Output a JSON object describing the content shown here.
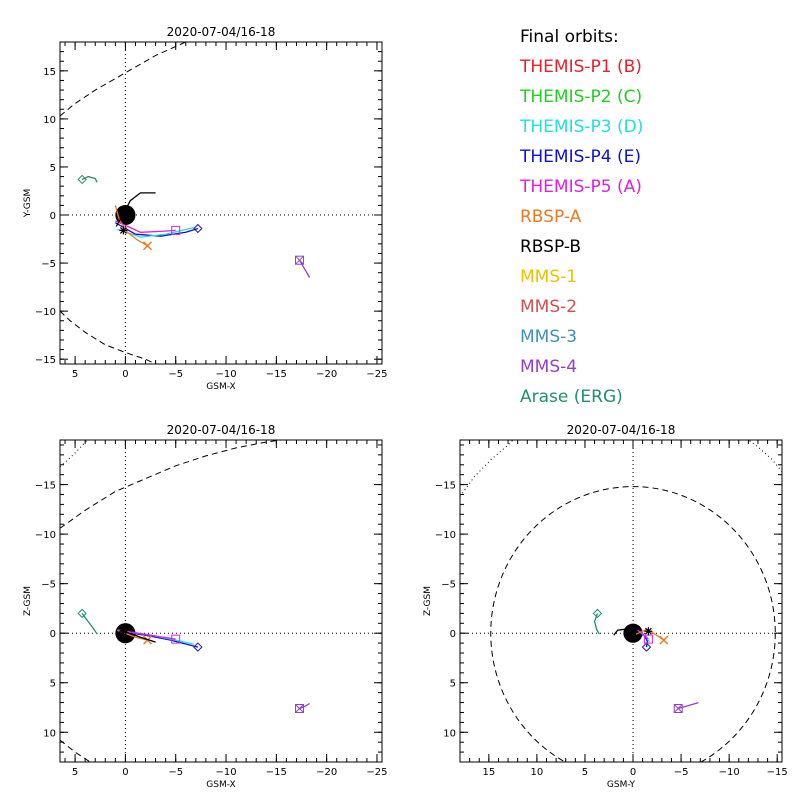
{
  "legend": {
    "title": "Final orbits:",
    "items": [
      {
        "label": "THEMIS-P1 (B)",
        "color": "#e8202a"
      },
      {
        "label": "THEMIS-P2 (C)",
        "color": "#20d020"
      },
      {
        "label": "THEMIS-P3 (D)",
        "color": "#20e0e0"
      },
      {
        "label": "THEMIS-P4 (E)",
        "color": "#1010d0"
      },
      {
        "label": "THEMIS-P5 (A)",
        "color": "#e020e0"
      },
      {
        "label": "RBSP-A",
        "color": "#f07820"
      },
      {
        "label": "RBSP-B",
        "color": "#000000"
      },
      {
        "label": "MMS-1",
        "color": "#f0c000"
      },
      {
        "label": "MMS-2",
        "color": "#d05050"
      },
      {
        "label": "MMS-3",
        "color": "#4090c0"
      },
      {
        "label": "MMS-4",
        "color": "#9040d0"
      },
      {
        "label": "Arase (ERG)",
        "color": "#20906a"
      }
    ]
  },
  "chart_data": [
    {
      "type": "line",
      "title": "2020-07-04/16-18",
      "xlabel": "GSM-X",
      "ylabel": "Y-GSM",
      "xlim": [
        6.5,
        -25.5
      ],
      "ylim": [
        18,
        -15.5
      ],
      "xticks": [
        5,
        0,
        -5,
        -10,
        -15,
        -20,
        -25
      ],
      "xticklabels": [
        "5",
        "0",
        "−5",
        "−10",
        "−15",
        "−20",
        "−25"
      ],
      "yticks": [
        -15,
        -10,
        -5,
        0,
        5,
        10,
        15
      ],
      "yticklabels": [
        "−15",
        "−10",
        "−5",
        "0",
        "5",
        "10",
        "15"
      ],
      "grid": "zero lines dotted",
      "earth": {
        "x": 0,
        "y": 0,
        "r": 1
      },
      "boundaries": [
        {
          "style": "dashed",
          "points": [
            [
              6.5,
              -10.0
            ],
            [
              5.5,
              -11.0
            ],
            [
              4.0,
              -12.2
            ],
            [
              2.0,
              -13.5
            ],
            [
              0,
              -14.3
            ],
            [
              -2.0,
              -15.0
            ],
            [
              -3.0,
              -15.5
            ]
          ]
        },
        {
          "style": "dashed",
          "points": [
            [
              6.5,
              10.3
            ],
            [
              5.0,
              11.6
            ],
            [
              3.0,
              13.0
            ],
            [
              0,
              14.8
            ],
            [
              -3.0,
              16.6
            ],
            [
              -6.0,
              18.0
            ]
          ]
        }
      ],
      "series": [
        {
          "color": "#1010d0",
          "points": [
            [
              1.0,
              -0.8
            ],
            [
              -1.0,
              -2.0
            ],
            [
              -3.5,
              -2.2
            ],
            [
              -6.0,
              -1.8
            ],
            [
              -7.2,
              -1.4
            ]
          ],
          "end": {
            "x": -7.2,
            "y": -1.4,
            "marker": "diamond"
          }
        },
        {
          "color": "#20e0e0",
          "points": [
            [
              0.8,
              -1.5
            ],
            [
              -1.5,
              -2.3
            ],
            [
              -4.0,
              -2.0
            ],
            [
              -6.8,
              -1.3
            ]
          ]
        },
        {
          "color": "#e020e0",
          "points": [
            [
              1.0,
              -0.6
            ],
            [
              -1.5,
              -1.8
            ],
            [
              -3.5,
              -1.7
            ],
            [
              -5.0,
              -1.6
            ]
          ],
          "end": {
            "x": -5.0,
            "y": -1.6,
            "marker": "square"
          }
        },
        {
          "color": "#f07820",
          "points": [
            [
              1.0,
              1.0
            ],
            [
              0.6,
              -0.5
            ],
            [
              -0.2,
              -1.8
            ],
            [
              -1.2,
              -2.6
            ],
            [
              -2.2,
              -3.2
            ]
          ],
          "end": {
            "x": -2.2,
            "y": -3.2,
            "marker": "x"
          }
        },
        {
          "color": "#000000",
          "points": [
            [
              0.9,
              -1.2
            ],
            [
              -0.5,
              1.5
            ],
            [
              -1.5,
              2.3
            ],
            [
              -3.0,
              2.3
            ]
          ],
          "end": {
            "x": 0.2,
            "y": -1.6,
            "marker": "asterisk"
          }
        },
        {
          "color": "#9040d0",
          "points": [
            [
              -17.3,
              -4.7
            ],
            [
              -17.8,
              -5.6
            ],
            [
              -18.3,
              -6.5
            ]
          ],
          "end": {
            "x": -17.3,
            "y": -4.7,
            "marker": "square-x"
          }
        },
        {
          "color": "#20906a",
          "points": [
            [
              4.3,
              3.7
            ],
            [
              3.7,
              4.0
            ],
            [
              3.0,
              3.8
            ],
            [
              2.8,
              3.4
            ]
          ],
          "end": {
            "x": 4.3,
            "y": 3.7,
            "marker": "diamond"
          }
        }
      ]
    },
    {
      "type": "line",
      "title": "2020-07-04/16-18",
      "xlabel": "GSM-X",
      "ylabel": "Z-GSM",
      "xlim": [
        6.5,
        -25.5
      ],
      "ylim": [
        -19.5,
        13
      ],
      "xticks": [
        5,
        0,
        -5,
        -10,
        -15,
        -20,
        -25
      ],
      "xticklabels": [
        "5",
        "0",
        "−5",
        "−10",
        "−15",
        "−20",
        "−25"
      ],
      "yticks": [
        -15,
        -10,
        -5,
        0,
        5,
        10
      ],
      "yticklabels": [
        "−15",
        "−10",
        "−5",
        "0",
        "5",
        "10"
      ],
      "grid": "zero lines dotted",
      "earth": {
        "x": 0,
        "y": 0,
        "r": 1
      },
      "boundaries": [
        {
          "style": "dashed",
          "points": [
            [
              6.5,
              10.8
            ],
            [
              5.0,
              12.0
            ],
            [
              3.5,
              13.0
            ]
          ]
        },
        {
          "style": "dashed",
          "points": [
            [
              6.5,
              -10.6
            ],
            [
              4.0,
              -12.4
            ],
            [
              1.0,
              -14.3
            ],
            [
              -2.0,
              -15.6
            ],
            [
              -5.0,
              -16.9
            ],
            [
              -8.0,
              -17.9
            ],
            [
              -11.0,
              -18.7
            ],
            [
              -14.0,
              -19.3
            ],
            [
              -15.5,
              -19.5
            ]
          ]
        },
        {
          "style": "dotted",
          "points": [
            [
              6.5,
              -16.8
            ],
            [
              5.5,
              -17.7
            ],
            [
              4.5,
              -18.7
            ],
            [
              3.8,
              -19.5
            ]
          ]
        }
      ],
      "series": [
        {
          "color": "#1010d0",
          "points": [
            [
              0.8,
              -0.2
            ],
            [
              -2.0,
              0.2
            ],
            [
              -4.5,
              0.7
            ],
            [
              -7.2,
              1.4
            ]
          ],
          "end": {
            "x": -7.2,
            "y": 1.4,
            "marker": "diamond"
          }
        },
        {
          "color": "#20e0e0",
          "points": [
            [
              0.8,
              -0.3
            ],
            [
              -2.5,
              0.2
            ],
            [
              -5.0,
              0.7
            ],
            [
              -6.8,
              1.1
            ]
          ]
        },
        {
          "color": "#e020e0",
          "points": [
            [
              0.6,
              -0.3
            ],
            [
              -2.5,
              0.2
            ],
            [
              -5.0,
              0.6
            ]
          ],
          "end": {
            "x": -5.0,
            "y": 0.6,
            "marker": "square"
          }
        },
        {
          "color": "#f07820",
          "points": [
            [
              0.8,
              -0.3
            ],
            [
              -1.0,
              0.4
            ],
            [
              -2.2,
              0.7
            ]
          ],
          "end": {
            "x": -2.2,
            "y": 0.7,
            "marker": "x"
          }
        },
        {
          "color": "#000000",
          "points": [
            [
              0.5,
              -0.3
            ],
            [
              -1.5,
              0.4
            ],
            [
              -3.0,
              0.9
            ]
          ],
          "end": {
            "x": 0.2,
            "y": -0.2,
            "marker": "asterisk"
          }
        },
        {
          "color": "#9040d0",
          "points": [
            [
              -17.3,
              7.6
            ],
            [
              -17.8,
              7.4
            ],
            [
              -18.3,
              7.1
            ]
          ],
          "end": {
            "x": -17.3,
            "y": 7.6,
            "marker": "square-x"
          }
        },
        {
          "color": "#20906a",
          "points": [
            [
              4.3,
              -2.0
            ],
            [
              3.8,
              -1.3
            ],
            [
              3.2,
              -0.5
            ],
            [
              2.8,
              0.1
            ]
          ],
          "end": {
            "x": 4.3,
            "y": -2.0,
            "marker": "diamond"
          }
        }
      ]
    },
    {
      "type": "line",
      "title": "2020-07-04/16-18",
      "xlabel": "GSM-Y",
      "ylabel": "Z-GSM",
      "xlim": [
        18,
        -15.5
      ],
      "ylim": [
        -19.5,
        13
      ],
      "xticks": [
        15,
        10,
        5,
        0,
        -5,
        -10,
        -15
      ],
      "xticklabels": [
        "15",
        "10",
        "5",
        "0",
        "−5",
        "−10",
        "−15"
      ],
      "yticks": [
        -15,
        -10,
        -5,
        0,
        5,
        10
      ],
      "yticklabels": [
        "−15",
        "−10",
        "−5",
        "0",
        "5",
        "10"
      ],
      "grid": "zero lines dotted",
      "earth": {
        "x": 0,
        "y": 0,
        "r": 1
      },
      "boundaries": [
        {
          "style": "dashed",
          "circle": {
            "cx": 0,
            "cy": 0,
            "r": 14.8
          }
        },
        {
          "style": "dotted",
          "points": [
            [
              18.0,
              -13.8
            ],
            [
              16.5,
              -15.8
            ],
            [
              14.8,
              -17.5
            ],
            [
              13.0,
              -19.0
            ],
            [
              12.5,
              -19.5
            ]
          ]
        },
        {
          "style": "dotted",
          "points": [
            [
              -15.5,
              -16.3
            ],
            [
              -14.5,
              -17.5
            ],
            [
              -13.0,
              -18.8
            ],
            [
              -12.0,
              -19.5
            ]
          ]
        }
      ],
      "series": [
        {
          "color": "#1010d0",
          "points": [
            [
              -0.5,
              -0.3
            ],
            [
              -1.2,
              0.3
            ],
            [
              -1.5,
              0.8
            ],
            [
              -1.4,
              1.4
            ]
          ],
          "end": {
            "x": -1.4,
            "y": 1.4,
            "marker": "diamond"
          }
        },
        {
          "color": "#20e0e0",
          "points": [
            [
              -0.6,
              -0.2
            ],
            [
              -1.4,
              0.4
            ],
            [
              -1.7,
              0.9
            ]
          ]
        },
        {
          "color": "#e020e0",
          "points": [
            [
              -0.5,
              -0.3
            ],
            [
              -1.2,
              0.2
            ],
            [
              -1.6,
              0.6
            ]
          ],
          "end": {
            "x": -1.6,
            "y": 0.6,
            "marker": "square"
          }
        },
        {
          "color": "#f07820",
          "points": [
            [
              -0.3,
              0.1
            ],
            [
              -1.5,
              -0.4
            ],
            [
              -2.6,
              0.3
            ],
            [
              -3.2,
              0.7
            ]
          ],
          "end": {
            "x": -3.2,
            "y": 0.7,
            "marker": "x"
          }
        },
        {
          "color": "#000000",
          "points": [
            [
              2.0,
              0.2
            ],
            [
              1.6,
              -0.3
            ],
            [
              0.8,
              -0.4
            ]
          ],
          "end": {
            "x": -1.6,
            "y": -0.2,
            "marker": "asterisk"
          }
        },
        {
          "color": "#9040d0",
          "points": [
            [
              -4.7,
              7.6
            ],
            [
              -5.8,
              7.3
            ],
            [
              -6.8,
              7.0
            ]
          ],
          "end": {
            "x": -4.7,
            "y": 7.6,
            "marker": "square-x"
          }
        },
        {
          "color": "#20906a",
          "points": [
            [
              3.7,
              -2.0
            ],
            [
              4.0,
              -1.2
            ],
            [
              3.8,
              -0.4
            ],
            [
              3.5,
              0.1
            ]
          ],
          "end": {
            "x": 3.7,
            "y": -2.0,
            "marker": "diamond"
          }
        }
      ]
    }
  ]
}
